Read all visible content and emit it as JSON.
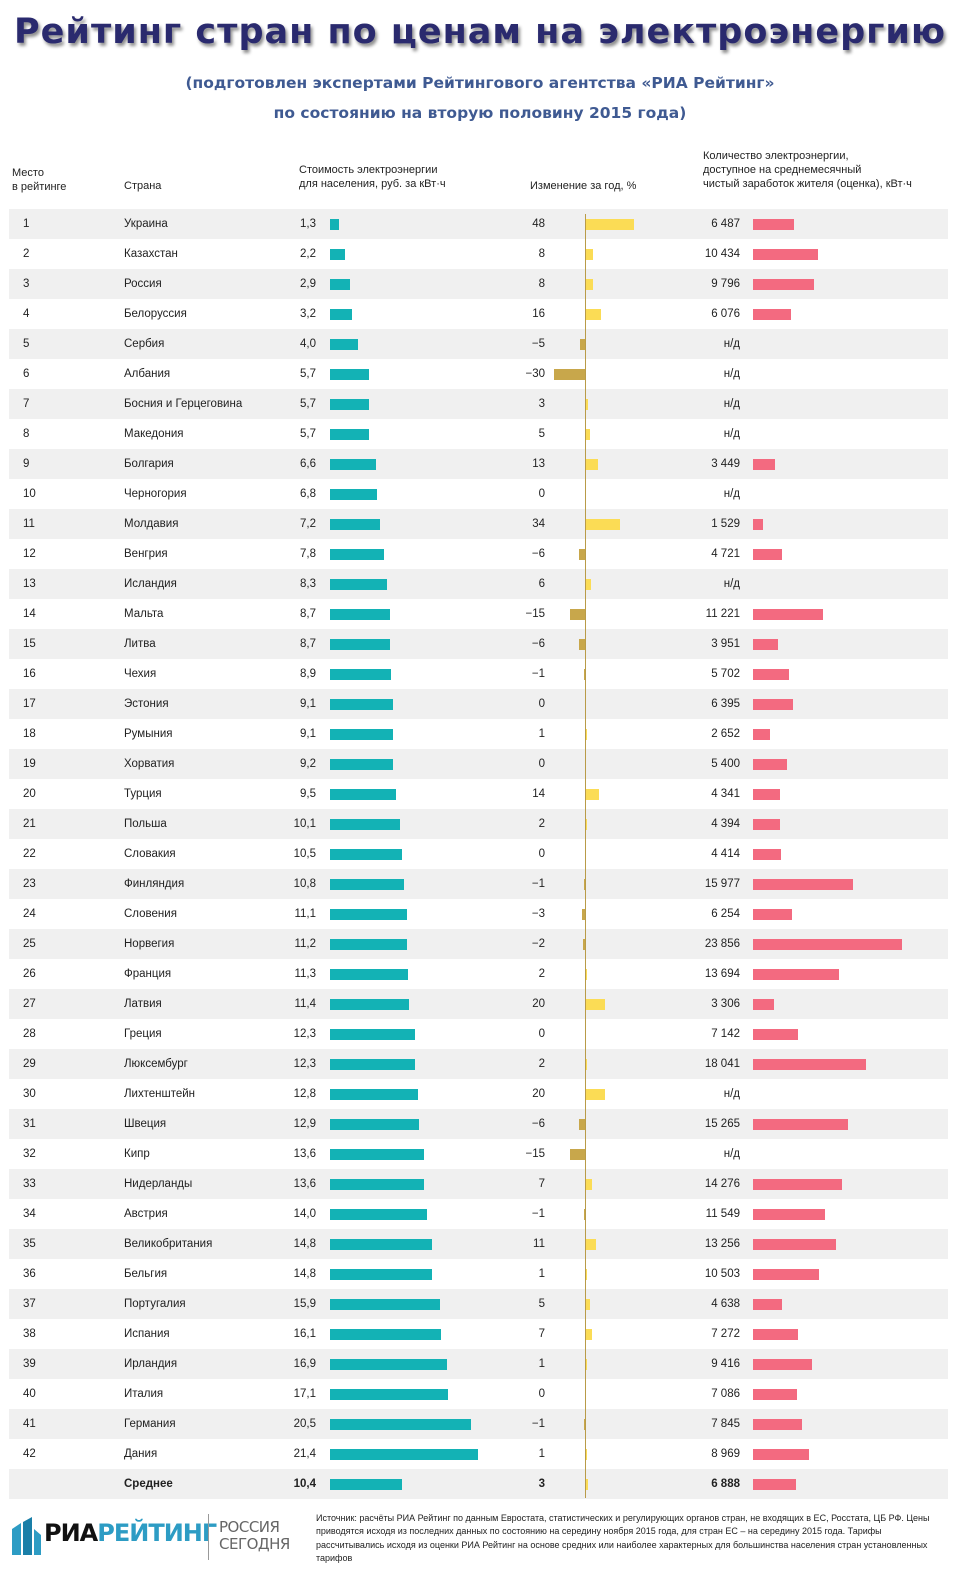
{
  "title": "Рейтинг стран по ценам на электроэнергию",
  "subtitle_line1": "(подготовлен экспертами Рейтингового агентства «РИА Рейтинг»",
  "subtitle_line2": "по состоянию на вторую половину 2015 года)",
  "headers": {
    "rank_line1": "Место",
    "rank_line2": "в рейтинге",
    "country": "Страна",
    "price_line1": "Стоимость электроэнергии",
    "price_line2": "для населения, руб. за кВт·ч",
    "change": "Изменение за год, %",
    "amount_line1": "Количество электроэнергии,",
    "amount_line2": "доступное на среднемесячный",
    "amount_line3": "чистый заработок жителя (оценка), кВт·ч"
  },
  "colors": {
    "price_bar": "#13b2b5",
    "change_positive": "#fbdc55",
    "change_negative": "#c8a74b",
    "amount_bar": "#f36a80",
    "row_shade": "#f0f0f0",
    "title": "#2a2a6e",
    "subtitle": "#3f5a92"
  },
  "chart_data": {
    "type": "bar",
    "columns": [
      "rank",
      "country",
      "price_rub_per_kwh",
      "change_percent",
      "kwh_per_monthly_salary"
    ],
    "rows": [
      {
        "rank": "1",
        "country": "Украина",
        "price": 1.3,
        "price_label": "1,3",
        "change": 48,
        "change_label": "48",
        "amount": 6487,
        "amount_label": "6 487"
      },
      {
        "rank": "2",
        "country": "Казахстан",
        "price": 2.2,
        "price_label": "2,2",
        "change": 8,
        "change_label": "8",
        "amount": 10434,
        "amount_label": "10 434"
      },
      {
        "rank": "3",
        "country": "Россия",
        "price": 2.9,
        "price_label": "2,9",
        "change": 8,
        "change_label": "8",
        "amount": 9796,
        "amount_label": "9 796"
      },
      {
        "rank": "4",
        "country": "Белоруссия",
        "price": 3.2,
        "price_label": "3,2",
        "change": 16,
        "change_label": "16",
        "amount": 6076,
        "amount_label": "6 076"
      },
      {
        "rank": "5",
        "country": "Сербия",
        "price": 4.0,
        "price_label": "4,0",
        "change": -5,
        "change_label": "−5",
        "amount": null,
        "amount_label": "н/д"
      },
      {
        "rank": "6",
        "country": "Албания",
        "price": 5.7,
        "price_label": "5,7",
        "change": -30,
        "change_label": "−30",
        "amount": null,
        "amount_label": "н/д"
      },
      {
        "rank": "7",
        "country": "Босния и Герцеговина",
        "price": 5.7,
        "price_label": "5,7",
        "change": 3,
        "change_label": "3",
        "amount": null,
        "amount_label": "н/д"
      },
      {
        "rank": "8",
        "country": "Македония",
        "price": 5.7,
        "price_label": "5,7",
        "change": 5,
        "change_label": "5",
        "amount": null,
        "amount_label": "н/д"
      },
      {
        "rank": "9",
        "country": "Болгария",
        "price": 6.6,
        "price_label": "6,6",
        "change": 13,
        "change_label": "13",
        "amount": 3449,
        "amount_label": "3 449"
      },
      {
        "rank": "10",
        "country": "Черногория",
        "price": 6.8,
        "price_label": "6,8",
        "change": 0,
        "change_label": "0",
        "amount": null,
        "amount_label": "н/д"
      },
      {
        "rank": "11",
        "country": "Молдавия",
        "price": 7.2,
        "price_label": "7,2",
        "change": 34,
        "change_label": "34",
        "amount": 1529,
        "amount_label": "1 529"
      },
      {
        "rank": "12",
        "country": "Венгрия",
        "price": 7.8,
        "price_label": "7,8",
        "change": -6,
        "change_label": "−6",
        "amount": 4721,
        "amount_label": "4 721"
      },
      {
        "rank": "13",
        "country": "Исландия",
        "price": 8.3,
        "price_label": "8,3",
        "change": 6,
        "change_label": "6",
        "amount": null,
        "amount_label": "н/д"
      },
      {
        "rank": "14",
        "country": "Мальта",
        "price": 8.7,
        "price_label": "8,7",
        "change": -15,
        "change_label": "−15",
        "amount": 11221,
        "amount_label": "11 221"
      },
      {
        "rank": "15",
        "country": "Литва",
        "price": 8.7,
        "price_label": "8,7",
        "change": -6,
        "change_label": "−6",
        "amount": 3951,
        "amount_label": "3 951"
      },
      {
        "rank": "16",
        "country": "Чехия",
        "price": 8.9,
        "price_label": "8,9",
        "change": -1,
        "change_label": "−1",
        "amount": 5702,
        "amount_label": "5 702"
      },
      {
        "rank": "17",
        "country": "Эстония",
        "price": 9.1,
        "price_label": "9,1",
        "change": 0,
        "change_label": "0",
        "amount": 6395,
        "amount_label": "6 395"
      },
      {
        "rank": "18",
        "country": "Румыния",
        "price": 9.1,
        "price_label": "9,1",
        "change": 1,
        "change_label": "1",
        "amount": 2652,
        "amount_label": "2 652"
      },
      {
        "rank": "19",
        "country": "Хорватия",
        "price": 9.2,
        "price_label": "9,2",
        "change": 0,
        "change_label": "0",
        "amount": 5400,
        "amount_label": "5 400"
      },
      {
        "rank": "20",
        "country": "Турция",
        "price": 9.5,
        "price_label": "9,5",
        "change": 14,
        "change_label": "14",
        "amount": 4341,
        "amount_label": "4 341"
      },
      {
        "rank": "21",
        "country": "Польша",
        "price": 10.1,
        "price_label": "10,1",
        "change": 2,
        "change_label": "2",
        "amount": 4394,
        "amount_label": "4 394"
      },
      {
        "rank": "22",
        "country": "Словакия",
        "price": 10.5,
        "price_label": "10,5",
        "change": 0,
        "change_label": "0",
        "amount": 4414,
        "amount_label": "4 414"
      },
      {
        "rank": "23",
        "country": "Финляндия",
        "price": 10.8,
        "price_label": "10,8",
        "change": -1,
        "change_label": "−1",
        "amount": 15977,
        "amount_label": "15 977"
      },
      {
        "rank": "24",
        "country": "Словения",
        "price": 11.1,
        "price_label": "11,1",
        "change": -3,
        "change_label": "−3",
        "amount": 6254,
        "amount_label": "6 254"
      },
      {
        "rank": "25",
        "country": "Норвегия",
        "price": 11.2,
        "price_label": "11,2",
        "change": -2,
        "change_label": "−2",
        "amount": 23856,
        "amount_label": "23 856"
      },
      {
        "rank": "26",
        "country": "Франция",
        "price": 11.3,
        "price_label": "11,3",
        "change": 2,
        "change_label": "2",
        "amount": 13694,
        "amount_label": "13 694"
      },
      {
        "rank": "27",
        "country": "Латвия",
        "price": 11.4,
        "price_label": "11,4",
        "change": 20,
        "change_label": "20",
        "amount": 3306,
        "amount_label": "3 306"
      },
      {
        "rank": "28",
        "country": "Греция",
        "price": 12.3,
        "price_label": "12,3",
        "change": 0,
        "change_label": "0",
        "amount": 7142,
        "amount_label": "7 142"
      },
      {
        "rank": "29",
        "country": "Люксембург",
        "price": 12.3,
        "price_label": "12,3",
        "change": 2,
        "change_label": "2",
        "amount": 18041,
        "amount_label": "18 041"
      },
      {
        "rank": "30",
        "country": "Лихтенштейн",
        "price": 12.8,
        "price_label": "12,8",
        "change": 20,
        "change_label": "20",
        "amount": null,
        "amount_label": "н/д"
      },
      {
        "rank": "31",
        "country": "Швеция",
        "price": 12.9,
        "price_label": "12,9",
        "change": -6,
        "change_label": "−6",
        "amount": 15265,
        "amount_label": "15 265"
      },
      {
        "rank": "32",
        "country": "Кипр",
        "price": 13.6,
        "price_label": "13,6",
        "change": -15,
        "change_label": "−15",
        "amount": null,
        "amount_label": "н/д"
      },
      {
        "rank": "33",
        "country": "Нидерланды",
        "price": 13.6,
        "price_label": "13,6",
        "change": 7,
        "change_label": "7",
        "amount": 14276,
        "amount_label": "14 276"
      },
      {
        "rank": "34",
        "country": "Австрия",
        "price": 14.0,
        "price_label": "14,0",
        "change": -1,
        "change_label": "−1",
        "amount": 11549,
        "amount_label": "11 549"
      },
      {
        "rank": "35",
        "country": "Великобритания",
        "price": 14.8,
        "price_label": "14,8",
        "change": 11,
        "change_label": "11",
        "amount": 13256,
        "amount_label": "13 256"
      },
      {
        "rank": "36",
        "country": "Бельгия",
        "price": 14.8,
        "price_label": "14,8",
        "change": 1,
        "change_label": "1",
        "amount": 10503,
        "amount_label": "10 503"
      },
      {
        "rank": "37",
        "country": "Португалия",
        "price": 15.9,
        "price_label": "15,9",
        "change": 5,
        "change_label": "5",
        "amount": 4638,
        "amount_label": "4 638"
      },
      {
        "rank": "38",
        "country": "Испания",
        "price": 16.1,
        "price_label": "16,1",
        "change": 7,
        "change_label": "7",
        "amount": 7272,
        "amount_label": "7 272"
      },
      {
        "rank": "39",
        "country": "Ирландия",
        "price": 16.9,
        "price_label": "16,9",
        "change": 1,
        "change_label": "1",
        "amount": 9416,
        "amount_label": "9 416"
      },
      {
        "rank": "40",
        "country": "Италия",
        "price": 17.1,
        "price_label": "17,1",
        "change": 0,
        "change_label": "0",
        "amount": 7086,
        "amount_label": "7 086"
      },
      {
        "rank": "41",
        "country": "Германия",
        "price": 20.5,
        "price_label": "20,5",
        "change": -1,
        "change_label": "−1",
        "amount": 7845,
        "amount_label": "7 845"
      },
      {
        "rank": "42",
        "country": "Дания",
        "price": 21.4,
        "price_label": "21,4",
        "change": 1,
        "change_label": "1",
        "amount": 8969,
        "amount_label": "8 969"
      },
      {
        "rank": "",
        "country": "Среднее",
        "price": 10.4,
        "price_label": "10,4",
        "change": 3,
        "change_label": "3",
        "amount": 6888,
        "amount_label": "6 888",
        "is_average": true
      }
    ]
  },
  "footer": {
    "logo_ria_part1": "РИА",
    "logo_ria_part2": "РЕЙТИНГ",
    "logo_rs_line1": "РОССИЯ",
    "logo_rs_line2": "СЕГОДНЯ",
    "source": "Источник: расчёты РИА Рейтинг по данным Евростата, статистических и регулирующих органов стран, не входящих в ЕС, Росстата, ЦБ РФ. Цены приводятся исходя из последних данных по состоянию на середину ноября 2015 года, для стран ЕС – на середину 2015 года. Тарифы рассчитывались исходя из оценки РИА Рейтинг на основе средних или наиболее характерных для большинства населения стран установленных тарифов"
  }
}
